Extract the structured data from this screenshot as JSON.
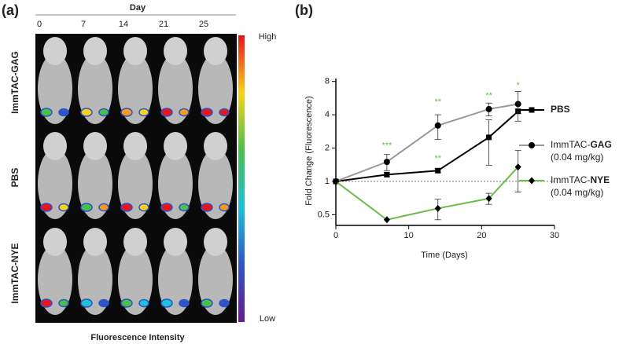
{
  "panel_a": {
    "label": "(a)",
    "header": "Day",
    "days": [
      0,
      7,
      14,
      21,
      25
    ],
    "rows": [
      "ImmTAC-GAG",
      "PBS",
      "ImmTAC-NYE"
    ],
    "scale_high": "High",
    "scale_low": "Low",
    "scale_title": "Fluorescence Intensity"
  },
  "chart_data": {
    "type": "line",
    "label": "(b)",
    "x_label": "Time (Days)",
    "y_label": "Fold Change (Fluorescence)",
    "log_scale_y": true,
    "xlim": [
      0,
      30
    ],
    "xticks": [
      0,
      10,
      20,
      30
    ],
    "ylim": [
      0.4,
      8.5
    ],
    "yticks": [
      0.5,
      1,
      2,
      4,
      8
    ],
    "hline": 1,
    "x": [
      0,
      7,
      14,
      21,
      25
    ],
    "series": [
      {
        "name": "PBS",
        "color": "#000000",
        "marker": "square",
        "values": [
          1,
          1.15,
          1.25,
          2.5,
          4.3
        ],
        "errors": [
          0,
          0.05,
          0.05,
          1.1,
          0.2
        ]
      },
      {
        "name": "ImmTAC-GAG (0.04 mg/kg)",
        "color": "#8c8c8c",
        "marker": "circle",
        "values": [
          1,
          1.5,
          3.2,
          4.5,
          5
        ],
        "errors": [
          0,
          0.25,
          0.8,
          0.6,
          1.5
        ]
      },
      {
        "name": "ImmTAC-NYE (0.04 mg/kg)",
        "color": "#6cbd45",
        "marker": "diamond",
        "values": [
          1,
          0.45,
          0.57,
          0.7,
          1.35
        ],
        "errors": [
          0,
          0,
          0.12,
          0.08,
          0.55
        ]
      }
    ],
    "annotation_color": "#6cbd45",
    "annotations": [
      {
        "text": "***",
        "x": 7,
        "y": 2.1
      },
      {
        "text": "**",
        "x": 14,
        "y": 5.2
      },
      {
        "text": "**",
        "x": 14,
        "y": 1.6
      },
      {
        "text": "**",
        "x": 21,
        "y": 5.9
      },
      {
        "text": "*",
        "x": 25,
        "y": 7.3
      }
    ]
  }
}
